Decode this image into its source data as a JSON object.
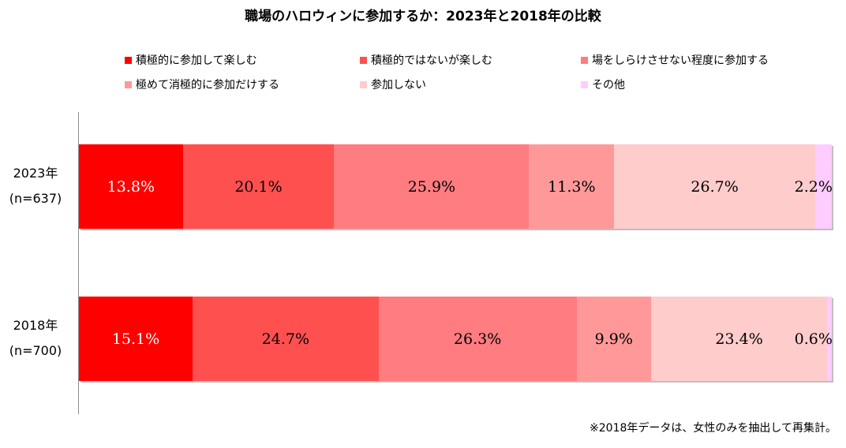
{
  "chart_data": {
    "type": "stacked-bar-horizontal",
    "title": "職場のハロウィンに参加するか：2023年と2018年の比較",
    "legend_position": "top",
    "x_range": [
      0,
      100
    ],
    "unit": "%",
    "series": [
      {
        "name": "積極的に参加して楽しむ",
        "color": "#ff0000"
      },
      {
        "name": "積極的ではないが楽しむ",
        "color": "#ff5050"
      },
      {
        "name": "場をしらけさせない程度に参加する",
        "color": "#ff7c80"
      },
      {
        "name": "極めて消極的に参加だけする",
        "color": "#ff9999"
      },
      {
        "name": "参加しない",
        "color": "#ffcccc"
      },
      {
        "name": "その他",
        "color": "#ffccff"
      }
    ],
    "rows": [
      {
        "year_label": "2023年",
        "n_label": "(n=637)",
        "values": [
          13.8,
          20.1,
          25.9,
          11.3,
          26.7,
          2.2
        ],
        "value_labels": [
          "13.8%",
          "20.1%",
          "25.9%",
          "11.3%",
          "26.7%",
          "2.2%"
        ]
      },
      {
        "year_label": "2018年",
        "n_label": "(n=700)",
        "values": [
          15.1,
          24.7,
          26.3,
          9.9,
          23.4,
          0.6
        ],
        "value_labels": [
          "15.1%",
          "24.7%",
          "26.3%",
          "9.9%",
          "23.4%",
          "0.6%"
        ]
      }
    ],
    "label_colors": [
      "#ffffff",
      "#000000",
      "#000000",
      "#000000",
      "#000000",
      "#000000"
    ],
    "footnote": "※2018年データは、女性のみを抽出して再集計。"
  }
}
